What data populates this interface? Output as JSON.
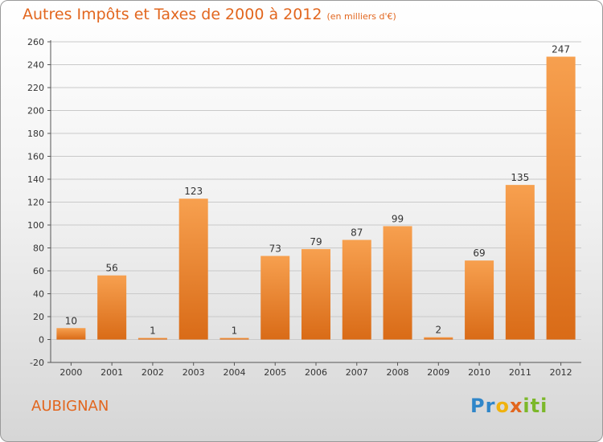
{
  "header": {
    "title": "Autres Impôts et Taxes de 2000 à 2012",
    "subtitle": "(en milliers d'€)"
  },
  "footer": {
    "commune": "AUBIGNAN",
    "logo_parts": [
      "Pr",
      "o",
      "x",
      "iti"
    ]
  },
  "colors": {
    "bar_light": "#f7a04f",
    "bar_dark": "#d96b17",
    "text_accent": "#e2661e"
  },
  "chart_data": {
    "type": "bar",
    "title": "Autres Impôts et Taxes de 2000 à 2012",
    "subtitle": "(en milliers d'€)",
    "xlabel": "",
    "ylabel": "",
    "categories": [
      "2000",
      "2001",
      "2002",
      "2003",
      "2004",
      "2005",
      "2006",
      "2007",
      "2008",
      "2009",
      "2010",
      "2011",
      "2012"
    ],
    "values": [
      10,
      56,
      1,
      123,
      1,
      73,
      79,
      87,
      99,
      2,
      69,
      135,
      247
    ],
    "ylim": [
      -20,
      260
    ],
    "yticks": [
      -20,
      0,
      20,
      40,
      60,
      80,
      100,
      120,
      140,
      160,
      180,
      200,
      220,
      240,
      260
    ],
    "grid": true,
    "legend": "none"
  }
}
